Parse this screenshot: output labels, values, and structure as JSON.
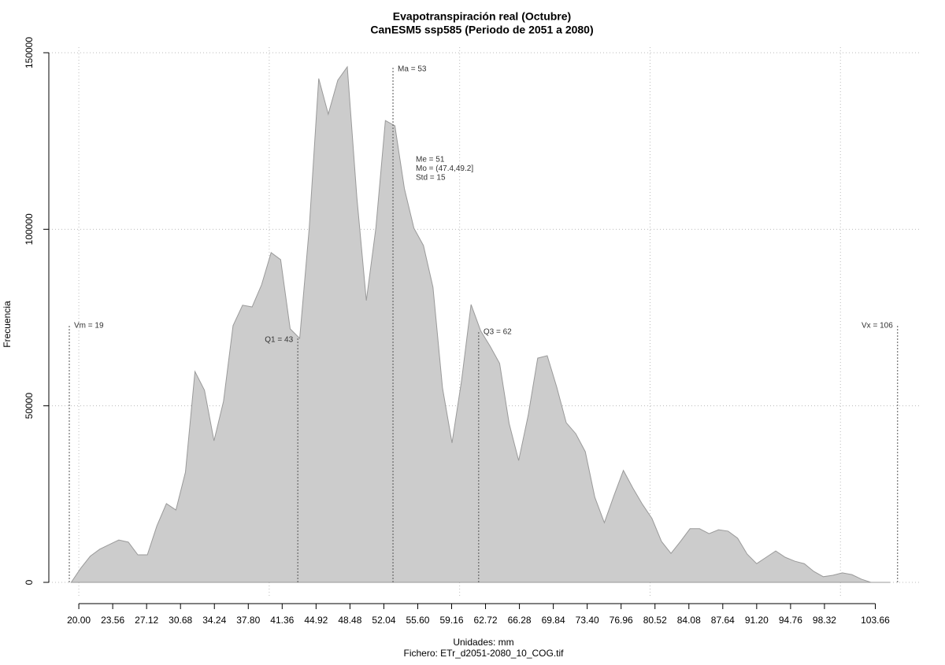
{
  "chart_data": {
    "type": "area",
    "title": "Evapotranspiración real (Octubre)",
    "subtitle": "CanESM5 ssp585 (Periodo de 2051 a 2080)",
    "xlabel": "Unidades: mm",
    "caption": "Fichero: ETr_d2051-2080_10_COG.tif",
    "ylabel": "Frecuencia",
    "color": "#cccccc",
    "line_color": "#9a9a9a",
    "x": [
      19.2,
      20.2,
      21.2,
      22.2,
      23.2,
      24.2,
      25.2,
      26.2,
      27.2,
      28.2,
      29.2,
      30.2,
      31.2,
      32.2,
      33.2,
      34.2,
      35.2,
      36.2,
      37.2,
      38.2,
      39.2,
      40.2,
      41.2,
      42.2,
      43.2,
      44.2,
      45.2,
      46.2,
      47.2,
      48.2,
      49.2,
      50.2,
      51.2,
      52.2,
      53.2,
      54.2,
      55.2,
      56.2,
      57.2,
      58.2,
      59.2,
      60.2,
      61.2,
      62.2,
      63.2,
      64.2,
      65.2,
      66.2,
      67.2,
      68.2,
      69.2,
      70.2,
      71.2,
      72.2,
      73.2,
      74.2,
      75.2,
      76.2,
      77.2,
      78.2,
      79.2,
      80.2,
      81.2,
      82.2,
      83.2,
      84.2,
      85.2,
      86.2,
      87.2,
      88.2,
      89.2,
      90.2,
      91.2,
      92.2,
      93.2,
      94.2,
      95.2,
      96.2,
      97.2,
      98.2,
      99.2,
      100.2,
      101.2,
      102.2,
      103.2,
      104.2,
      105.2
    ],
    "values": [
      0,
      4000,
      7400,
      9400,
      10700,
      12000,
      11400,
      7800,
      7800,
      16000,
      22300,
      20500,
      31200,
      59700,
      54400,
      40100,
      51300,
      72700,
      78500,
      78000,
      84300,
      93400,
      91400,
      71800,
      69100,
      100300,
      142700,
      132600,
      142200,
      146000,
      109200,
      79800,
      100300,
      130800,
      129300,
      111500,
      100300,
      95400,
      83600,
      55100,
      39500,
      57100,
      78700,
      71300,
      66900,
      62000,
      45000,
      34500,
      47300,
      63500,
      64200,
      55300,
      45200,
      42100,
      37000,
      24100,
      16900,
      24500,
      31700,
      26700,
      22100,
      18100,
      11600,
      8200,
      11600,
      15200,
      15200,
      13800,
      14900,
      14500,
      12500,
      8000,
      5300,
      7100,
      8900,
      7100,
      6000,
      5300,
      3100,
      1600,
      2000,
      2700,
      2200,
      900,
      0,
      0,
      0
    ],
    "xlim": [
      16.85,
      108.5
    ],
    "ylim": [
      -6690,
      151560
    ],
    "xticks": [
      {
        "value": 20,
        "label": "20.00"
      },
      {
        "value": 23.56,
        "label": "23.56"
      },
      {
        "value": 27.12,
        "label": "27.12"
      },
      {
        "value": 30.68,
        "label": "30.68"
      },
      {
        "value": 34.24,
        "label": "34.24"
      },
      {
        "value": 37.8,
        "label": "37.80"
      },
      {
        "value": 41.36,
        "label": "41.36"
      },
      {
        "value": 44.92,
        "label": "44.92"
      },
      {
        "value": 48.48,
        "label": "48.48"
      },
      {
        "value": 52.04,
        "label": "52.04"
      },
      {
        "value": 55.6,
        "label": "55.60"
      },
      {
        "value": 59.16,
        "label": "59.16"
      },
      {
        "value": 62.72,
        "label": "62.72"
      },
      {
        "value": 66.28,
        "label": "66.28"
      },
      {
        "value": 69.84,
        "label": "69.84"
      },
      {
        "value": 73.4,
        "label": "73.40"
      },
      {
        "value": 76.96,
        "label": "76.96"
      },
      {
        "value": 80.52,
        "label": "80.52"
      },
      {
        "value": 84.08,
        "label": "84.08"
      },
      {
        "value": 87.64,
        "label": "87.64"
      },
      {
        "value": 91.2,
        "label": "91.20"
      },
      {
        "value": 94.76,
        "label": "94.76"
      },
      {
        "value": 98.32,
        "label": "98.32"
      },
      {
        "value": 103.66,
        "label": "103.66"
      }
    ],
    "yticks": [
      0,
      50000,
      100000,
      150000
    ],
    "xgrid": [
      20,
      40,
      60,
      80,
      100
    ],
    "grid": true,
    "annotations": [
      {
        "label": "Vm = 19",
        "x": 19,
        "y": 73100,
        "side": "right"
      },
      {
        "label": "Q1 = 43",
        "x": 43,
        "y": 69100,
        "side": "left"
      },
      {
        "label": "Ma = 53",
        "x": 53,
        "y": 145800,
        "side": "right"
      },
      {
        "label": "Q3 = 62",
        "x": 62,
        "y": 71300,
        "side": "right"
      },
      {
        "label": "Vx = 106",
        "x": 106,
        "y": 73100,
        "side": "left"
      }
    ],
    "stats": [
      "Me = 51",
      "Mo = (47.4,49.2]",
      "Std = 15"
    ]
  }
}
